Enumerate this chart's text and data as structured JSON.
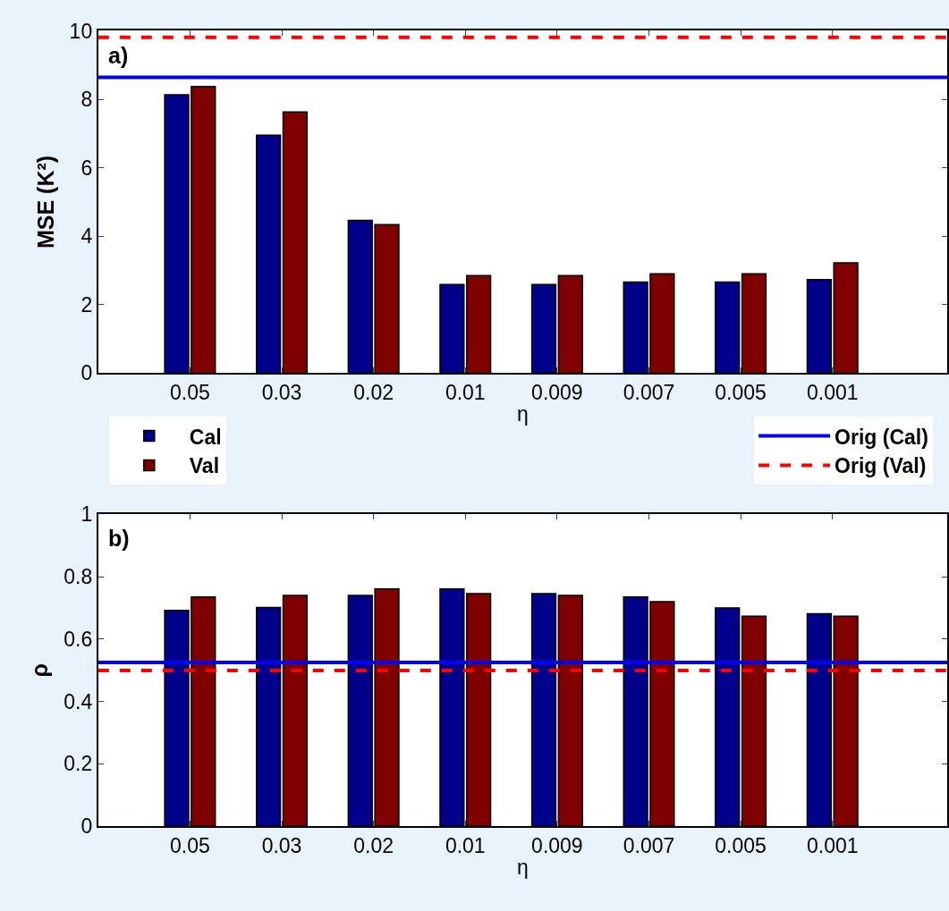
{
  "chart_data": [
    {
      "type": "bar",
      "categories": [
        "0.05",
        "0.03",
        "0.02",
        "0.01",
        "0.009",
        "0.007",
        "0.005",
        "0.001"
      ],
      "xlabel": "η",
      "ylabel": "MSE (K²)",
      "annotations": [
        "a)"
      ],
      "series": [
        {
          "name": "Cal",
          "color": "#00008b",
          "values": [
            8.13,
            6.95,
            4.46,
            2.59,
            2.59,
            2.66,
            2.66,
            2.73
          ]
        },
        {
          "name": "Val",
          "color": "#800000",
          "values": [
            8.37,
            7.63,
            4.34,
            2.85,
            2.85,
            2.9,
            2.9,
            3.22
          ]
        }
      ],
      "ylim": [
        0,
        10
      ],
      "yticks": [
        0,
        2,
        4,
        6,
        8,
        10
      ],
      "legend": "bottom",
      "ref_lines": [
        {
          "axis": "y",
          "value": 8.64,
          "label": "Orig (Cal)",
          "color": "#0000ff",
          "line_style": "solid"
        },
        {
          "axis": "y",
          "value": 9.81,
          "label": "Orig (Val)",
          "color": "#ff0000",
          "line_style": "dashed"
        }
      ]
    },
    {
      "type": "bar",
      "categories": [
        "0.05",
        "0.03",
        "0.02",
        "0.01",
        "0.009",
        "0.007",
        "0.005",
        "0.001"
      ],
      "xlabel": "η",
      "ylabel": "ρ",
      "annotations": [
        "b)"
      ],
      "series": [
        {
          "color": "#00008b",
          "values": [
            0.692,
            0.701,
            0.74,
            0.761,
            0.746,
            0.735,
            0.7,
            0.681
          ]
        },
        {
          "color": "#800000",
          "values": [
            0.735,
            0.74,
            0.761,
            0.746,
            0.74,
            0.72,
            0.673,
            0.673
          ]
        }
      ],
      "ylim": [
        0,
        1
      ],
      "yticks": [
        0,
        0.2,
        0.4,
        0.6,
        0.8,
        1
      ],
      "ref_lines": [
        {
          "axis": "y",
          "value": 0.525,
          "color": "#0000ff",
          "line_style": "solid"
        },
        {
          "axis": "y",
          "value": 0.499,
          "color": "#ff0000",
          "line_style": "dashed"
        }
      ]
    }
  ]
}
